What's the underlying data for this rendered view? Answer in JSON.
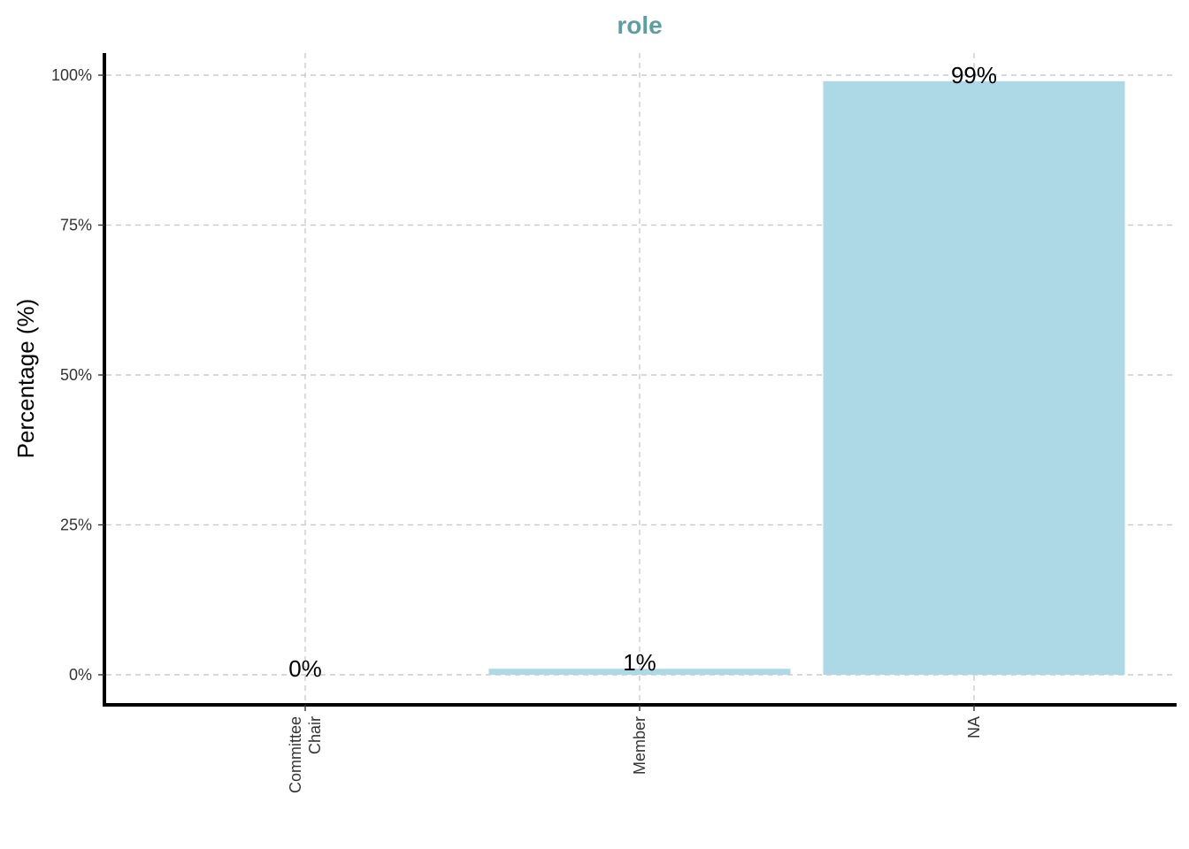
{
  "chart_data": {
    "type": "bar",
    "title": "role",
    "xlabel": "",
    "ylabel": "Percentage (%)",
    "categories": [
      [
        "Committee",
        "Chair"
      ],
      [
        "Member"
      ],
      [
        "NA"
      ]
    ],
    "values": [
      0,
      1,
      99
    ],
    "value_labels": [
      "0%",
      "1%",
      "99%"
    ],
    "ylim": [
      0,
      100
    ],
    "yticks": [
      0,
      25,
      50,
      75,
      100
    ],
    "ytick_labels": [
      "0%",
      "25%",
      "50%",
      "75%",
      "100%"
    ],
    "grid": true,
    "legend": "none",
    "colors": {
      "bar": "#add8e6",
      "title": "#5f9ea0",
      "grid": "#cccccc",
      "axis": "#000000"
    }
  }
}
